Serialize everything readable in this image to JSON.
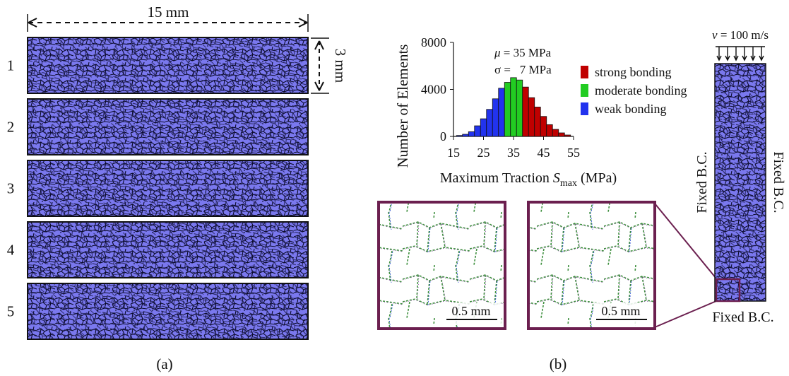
{
  "panel_a": {
    "width_label": "15 mm",
    "height_label": "3 mm",
    "sample_labels": [
      "1",
      "2",
      "3",
      "4",
      "5"
    ],
    "caption": "(a)"
  },
  "panel_b": {
    "caption": "(b)",
    "velocity": {
      "symbol": "v",
      "text": " = 100 m/s"
    },
    "bc_left": "Fixed B.C.",
    "bc_right": "Fixed B.C.",
    "bc_bottom": "Fixed B.C.",
    "scale_bar_left": "0.5 mm",
    "scale_bar_right": "0.5 mm",
    "stats": {
      "mu_symbol": "μ",
      "mu_text": " = 35 MPa",
      "sigma_symbol": "σ",
      "sigma_text": " =   7 MPa"
    },
    "legend": [
      {
        "label": "strong bonding",
        "color": "#c00000"
      },
      {
        "label": "moderate bonding",
        "color": "#22cc22"
      },
      {
        "label": "weak bonding",
        "color": "#2233ee"
      }
    ],
    "xlabel": {
      "main": "Maximum Traction ",
      "italic": "S",
      "sub": "max",
      "unit": " (MPa)"
    },
    "ylabel": "Number of Elements"
  },
  "colors": {
    "grain": "#7a78ee",
    "grain_edge": "#0a0a2a",
    "frame": "#6b1f4f",
    "weak": "#2233ee",
    "moderate": "#22cc22",
    "strong": "#c00000"
  },
  "chart_data": {
    "type": "bar",
    "xlabel": "Maximum Traction Smax (MPa)",
    "ylabel": "Number of Elements",
    "x_ticks": [
      15,
      25,
      35,
      45,
      55
    ],
    "y_ticks": [
      0,
      4000,
      8000
    ],
    "xlim": [
      15,
      55
    ],
    "ylim": [
      0,
      8000
    ],
    "bin_width": 2,
    "bin_starts": [
      16,
      18,
      20,
      22,
      24,
      26,
      28,
      30,
      32,
      34,
      36,
      38,
      40,
      42,
      44,
      46,
      48,
      50,
      52
    ],
    "values": [
      80,
      180,
      400,
      900,
      1500,
      2300,
      3200,
      4100,
      4600,
      5000,
      4800,
      4200,
      3300,
      2500,
      1700,
      1000,
      600,
      300,
      120
    ],
    "bin_colors": [
      "#2233ee",
      "#2233ee",
      "#2233ee",
      "#2233ee",
      "#2233ee",
      "#2233ee",
      "#2233ee",
      "#2233ee",
      "#22cc22",
      "#22cc22",
      "#22cc22",
      "#c00000",
      "#c00000",
      "#c00000",
      "#c00000",
      "#c00000",
      "#c00000",
      "#c00000",
      "#c00000"
    ]
  }
}
